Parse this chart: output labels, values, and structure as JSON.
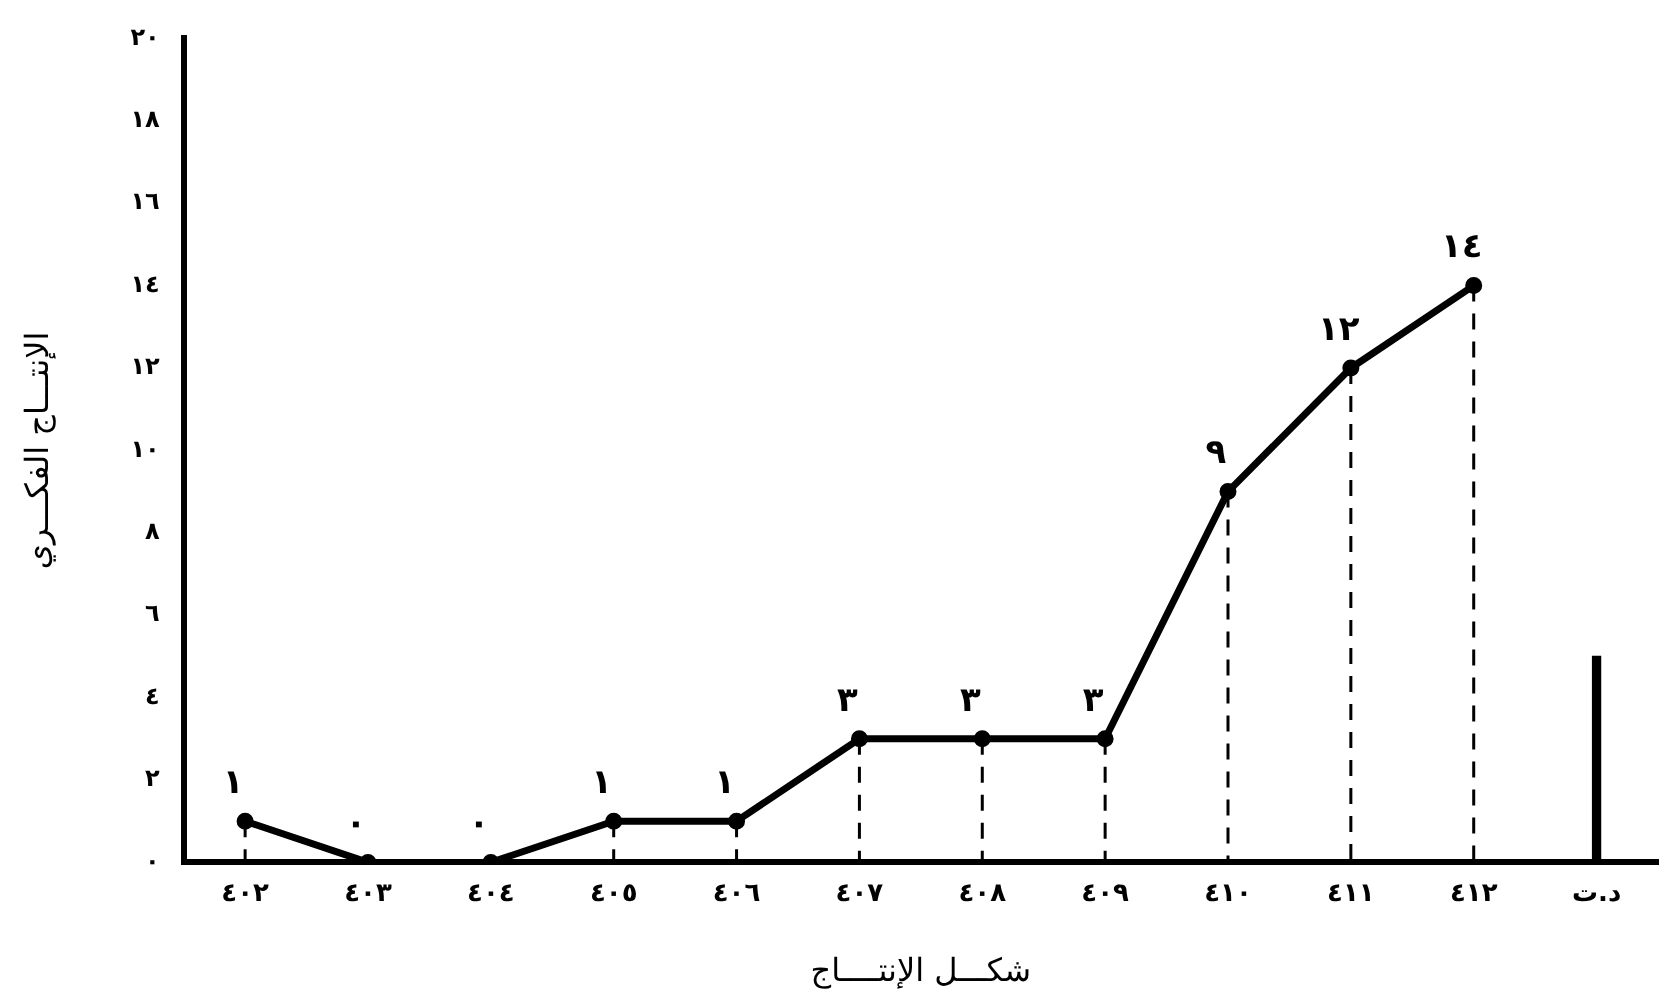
{
  "chart_data": {
    "type": "line",
    "xlabel": "شكـــل الإنتــــاج",
    "ylabel": "الإنتـــاج الفكـــري",
    "categories": [
      "٤٠٢",
      "٤٠٣",
      "٤٠٤",
      "٤٠٥",
      "٤٠٦",
      "٤٠٧",
      "٤٠٨",
      "٤٠٩",
      "٤١٠",
      "٤١١",
      "٤١٢",
      "د.ت"
    ],
    "series": [
      {
        "color": "#000000",
        "values": [
          1,
          0,
          0,
          1,
          1,
          3,
          3,
          3,
          9,
          12,
          14,
          null
        ],
        "value_labels": [
          "١",
          "٠",
          "٠",
          "١",
          "١",
          "٣",
          "٣",
          "٣",
          "٩",
          "١٢",
          "١٤",
          null
        ]
      },
      {
        "type": "bar",
        "color": "#000000",
        "values": [
          null,
          null,
          null,
          null,
          null,
          null,
          null,
          null,
          null,
          null,
          null,
          5
        ]
      }
    ],
    "ylim": [
      0,
      20
    ],
    "yticks": [
      {
        "value": 0,
        "label": "٠"
      },
      {
        "value": 2,
        "label": "٢"
      },
      {
        "value": 4,
        "label": "٤"
      },
      {
        "value": 6,
        "label": "٦"
      },
      {
        "value": 8,
        "label": "٨"
      },
      {
        "value": 10,
        "label": "١٠"
      },
      {
        "value": 12,
        "label": "١٢"
      },
      {
        "value": 14,
        "label": "١٤"
      },
      {
        "value": 16,
        "label": "١٦"
      },
      {
        "value": 18,
        "label": "١٨"
      },
      {
        "value": 20,
        "label": "٢٠"
      }
    ],
    "grid": false,
    "legend": false,
    "marker": "circle",
    "line_style": "solid"
  }
}
